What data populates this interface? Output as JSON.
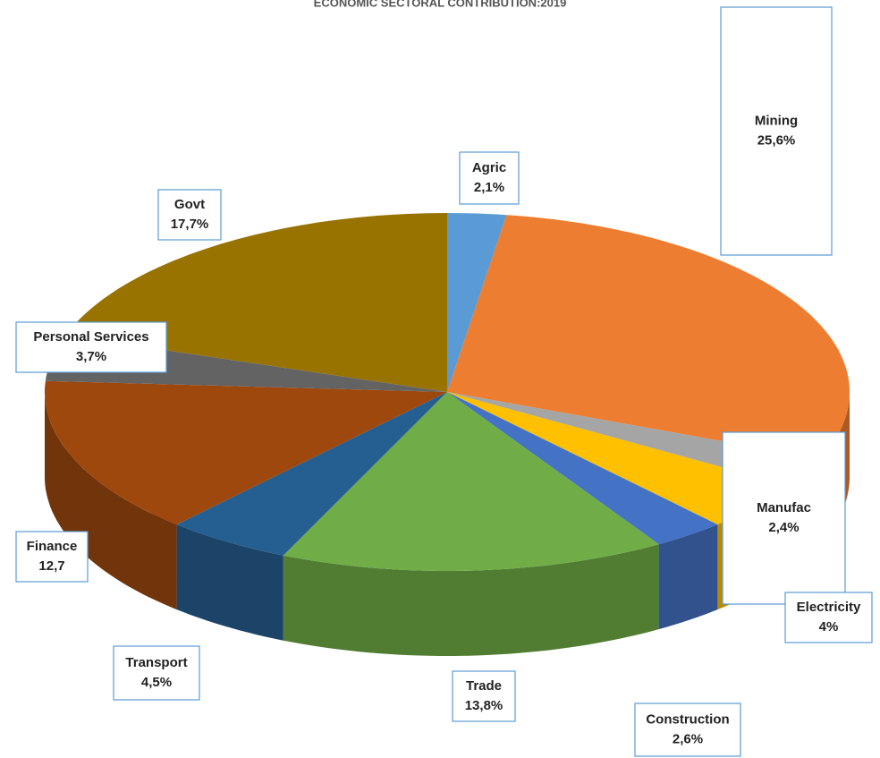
{
  "chart_data": {
    "type": "pie",
    "title": "ECONOMIC SECTORAL CONTRIBUTION:2019",
    "categories": [
      "Agric",
      "Mining",
      "Manufac",
      "Electricity",
      "Construction",
      "Trade",
      "Transport",
      "Finance",
      "Personal Services",
      "Govt"
    ],
    "values": [
      2.1,
      25.6,
      2.4,
      4,
      2.6,
      13.8,
      4.5,
      12.7,
      3.7,
      17.7
    ],
    "value_labels": [
      "2,1%",
      "25,6%",
      "2,4%",
      "4%",
      "2,6%",
      "13,8%",
      "4,5%",
      "12,7",
      "3,7%",
      "17,7%"
    ],
    "colors": [
      "#5b9bd5",
      "#ed7d31",
      "#a5a5a5",
      "#ffc000",
      "#4472c4",
      "#70ad47",
      "#255e91",
      "#9e480e",
      "#636363",
      "#997300"
    ]
  }
}
